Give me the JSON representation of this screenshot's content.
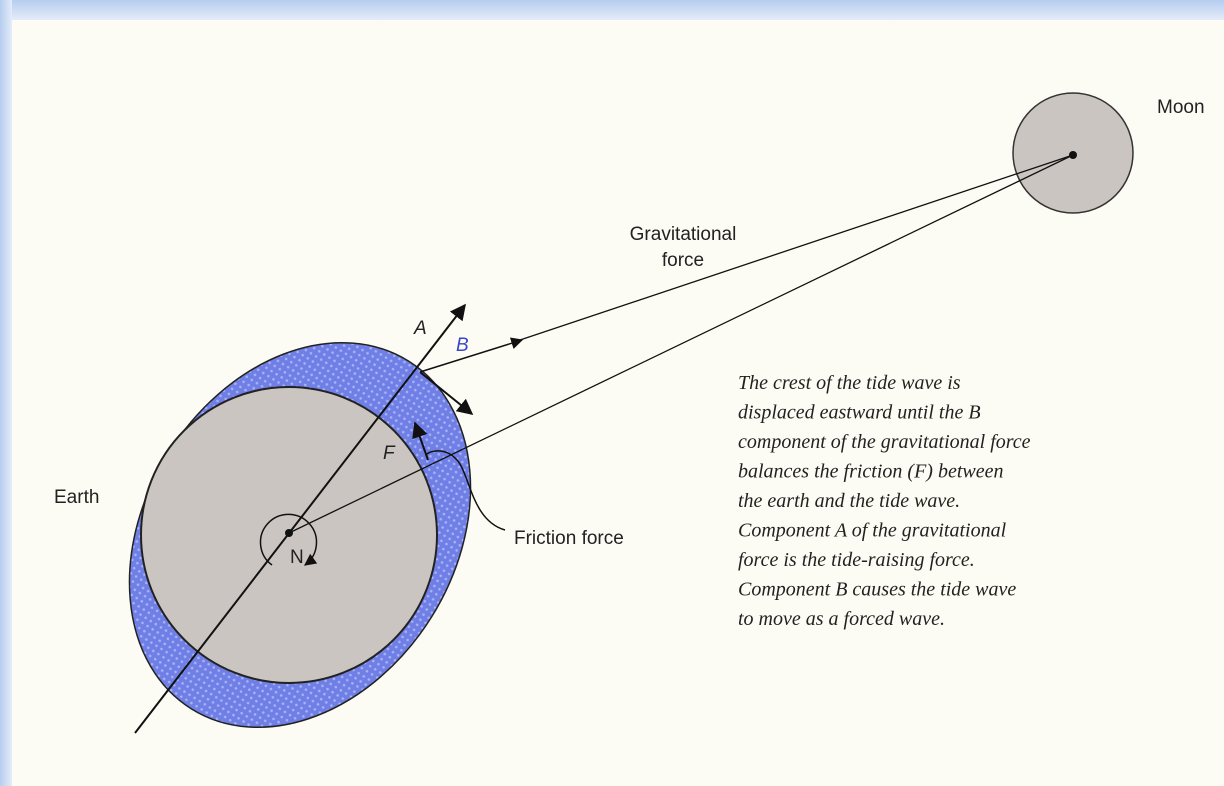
{
  "labels": {
    "moon": "Moon",
    "gravitational_force": [
      "Gravitational",
      "force"
    ],
    "a": "A",
    "b": "B",
    "f": "F",
    "n": "N",
    "earth": "Earth",
    "friction_force": "Friction force"
  },
  "caption": [
    "The crest of the tide wave is",
    "displaced eastward until the B",
    "component of the gravitational force",
    "balances the friction (F) between",
    "the earth and the tide wave.",
    "Component A of the gravitational",
    "force is the tide-raising force.",
    "Component B causes the tide wave",
    "to move as a forced wave."
  ]
}
